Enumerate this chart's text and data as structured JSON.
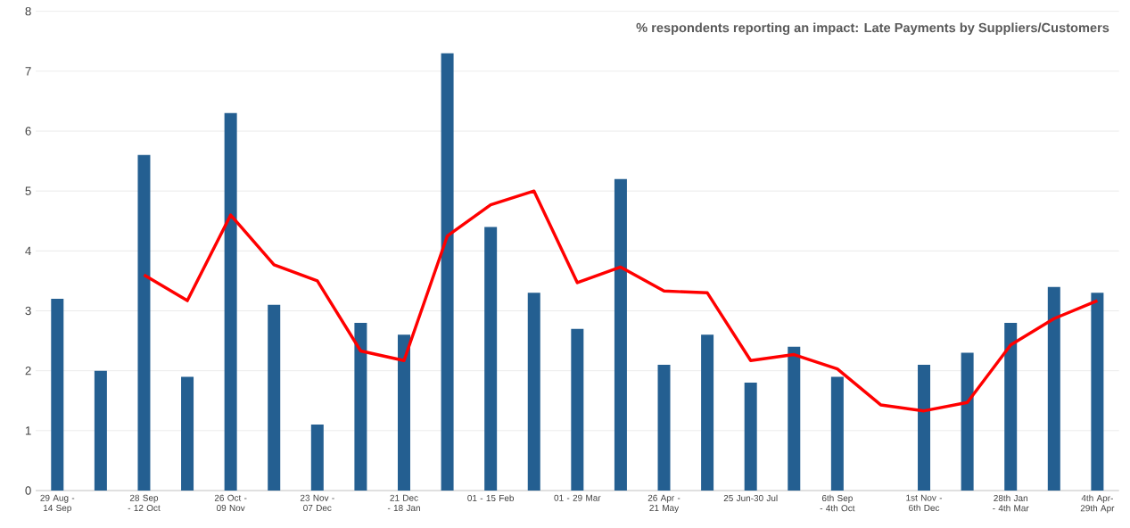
{
  "chart_data": {
    "type": "bar",
    "title": "% respondents reporting an impact: Late Payments by Suppliers/Customers",
    "categories": [
      "29 Aug - 14 Sep",
      null,
      "28 Sep - 12 Oct",
      null,
      "26 Oct - 09 Nov",
      null,
      "23 Nov - 07 Dec",
      null,
      "21 Dec - 18 Jan",
      null,
      "01 - 15 Feb",
      null,
      "01 - 29 Mar",
      null,
      "26 Apr - 21 May",
      null,
      "25 Jun-30 Jul",
      null,
      "6th Sep - 4th Oct",
      null,
      "1st Nov - 6th Dec",
      null,
      "28th Jan - 4th Mar",
      null,
      "4th Apr-29th Apr"
    ],
    "series": [
      {
        "color": "#245f91",
        "values": [
          3.2,
          2.0,
          5.6,
          1.9,
          6.3,
          3.1,
          1.1,
          2.8,
          2.6,
          7.3,
          4.4,
          3.3,
          2.7,
          5.2,
          2.1,
          2.6,
          1.8,
          2.4,
          1.9,
          null,
          2.1,
          2.3,
          2.8,
          3.4,
          3.3
        ]
      },
      {
        "type": "line",
        "color": "#ff0000",
        "values": [
          null,
          null,
          3.6,
          3.17,
          4.6,
          3.77,
          3.5,
          2.33,
          2.17,
          4.25,
          4.77,
          5.0,
          3.47,
          3.73,
          3.33,
          3.3,
          2.17,
          2.27,
          2.03,
          1.43,
          1.33,
          1.47,
          2.43,
          2.87,
          3.17
        ]
      }
    ],
    "ylim": [
      0,
      8
    ],
    "yticks": [
      0,
      1,
      2,
      3,
      4,
      5,
      6,
      7,
      8
    ],
    "grid": "y"
  }
}
